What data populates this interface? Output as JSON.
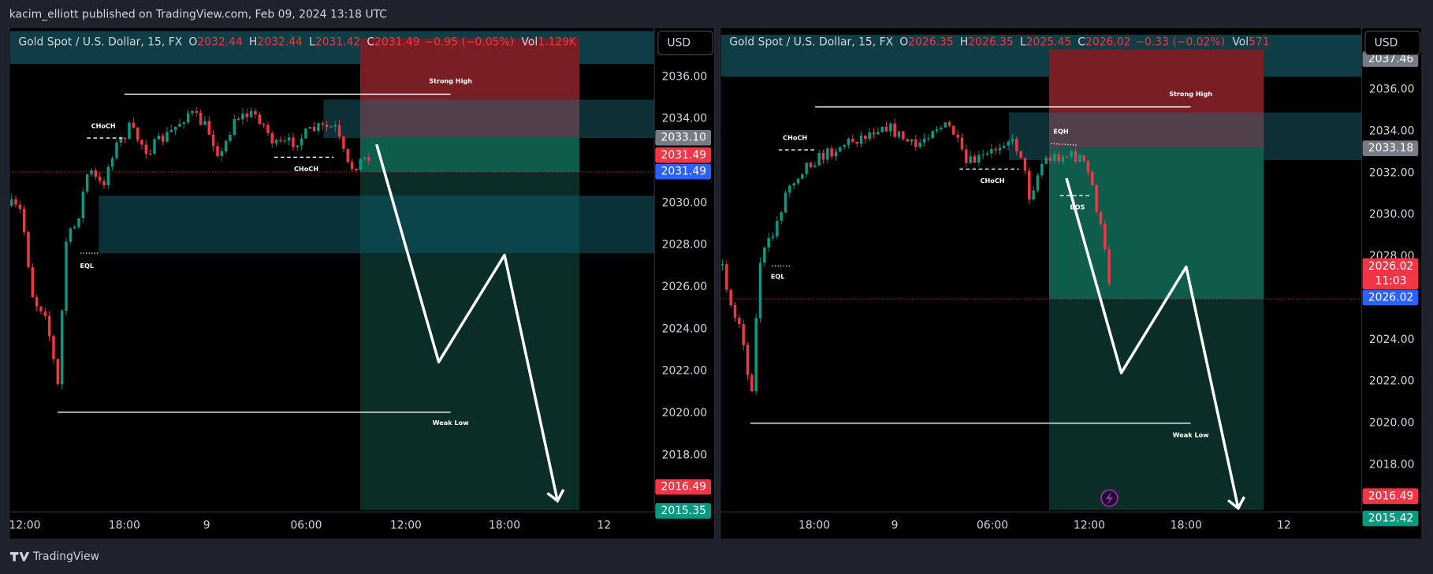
{
  "header": {
    "text": "kacim_elliott published on TradingView.com, Feb 09, 2024 13:18 UTC"
  },
  "panels": [
    {
      "legend": {
        "symbol": "Gold Spot / U.S. Dollar, 15, FX",
        "fields": [
          {
            "key": "O",
            "value": "2032.44"
          },
          {
            "key": "H",
            "value": "2032.44"
          },
          {
            "key": "L",
            "value": "2031.42"
          },
          {
            "key": "C",
            "value": "2031.49"
          }
        ],
        "change": "−0.95 (−0.05%)",
        "vol_key": "Vol",
        "vol": "1.129K"
      },
      "currency": "USD",
      "yticks": [
        {
          "value": 2036,
          "label": "2036.00"
        },
        {
          "value": 2034,
          "label": "2034.00"
        },
        {
          "value": 2030,
          "label": "2030.00"
        },
        {
          "value": 2028,
          "label": "2028.00"
        },
        {
          "value": 2026,
          "label": "2026.00"
        },
        {
          "value": 2024,
          "label": "2024.00"
        },
        {
          "value": 2022,
          "label": "2022.00"
        },
        {
          "value": 2020,
          "label": "2020.00"
        },
        {
          "value": 2018,
          "label": "2018.00"
        }
      ],
      "xticks": [
        "12:00",
        "18:00",
        "9",
        "06:00",
        "12:00",
        "18:00",
        "12"
      ],
      "badges": [
        {
          "value": 2033.1,
          "label": "2033.10"
        },
        {
          "value": 2031.49,
          "label": "2031.49"
        },
        {
          "value": 2031.49,
          "label": "2031.49"
        },
        {
          "value": 2016.49,
          "label": "2016.49"
        },
        {
          "value": 2015.35,
          "label": "2015.35"
        }
      ],
      "annotations": [
        "Strong High",
        "CHoCH",
        "CHoCH",
        "EQL",
        "Weak Low"
      ]
    },
    {
      "legend": {
        "symbol": "Gold Spot / U.S. Dollar, 15, FX",
        "fields": [
          {
            "key": "O",
            "value": "2026.35"
          },
          {
            "key": "H",
            "value": "2026.35"
          },
          {
            "key": "L",
            "value": "2025.45"
          },
          {
            "key": "C",
            "value": "2026.02"
          }
        ],
        "change": "−0.33 (−0.02%)",
        "vol_key": "Vol",
        "vol": "571"
      },
      "currency": "USD",
      "yticks": [
        {
          "value": 2036,
          "label": "2036.00"
        },
        {
          "value": 2034,
          "label": "2034.00"
        },
        {
          "value": 2032,
          "label": "2032.00"
        },
        {
          "value": 2030,
          "label": "2030.00"
        },
        {
          "value": 2028,
          "label": "2028.00"
        },
        {
          "value": 2024,
          "label": "2024.00"
        },
        {
          "value": 2022,
          "label": "2022.00"
        },
        {
          "value": 2020,
          "label": "2020.00"
        },
        {
          "value": 2018,
          "label": "2018.00"
        }
      ],
      "xticks": [
        "18:00",
        "9",
        "06:00",
        "12:00",
        "18:00",
        "12"
      ],
      "badges": [
        {
          "value": 2037.46,
          "label": "2037.46"
        },
        {
          "value": 2033.18,
          "label": "2033.18"
        },
        {
          "value": 2026.02,
          "label": "2026.02",
          "countdown": "11:03"
        },
        {
          "value": 2026.02,
          "label": "2026.02"
        },
        {
          "value": 2016.49,
          "label": "2016.49"
        },
        {
          "value": 2015.42,
          "label": "2015.42"
        }
      ],
      "annotations": [
        "Strong High",
        "CHoCH",
        "CHoCH",
        "EQH",
        "BOS",
        "EQL",
        "Weak Low"
      ]
    }
  ],
  "footer": {
    "brand": "TradingView"
  }
}
